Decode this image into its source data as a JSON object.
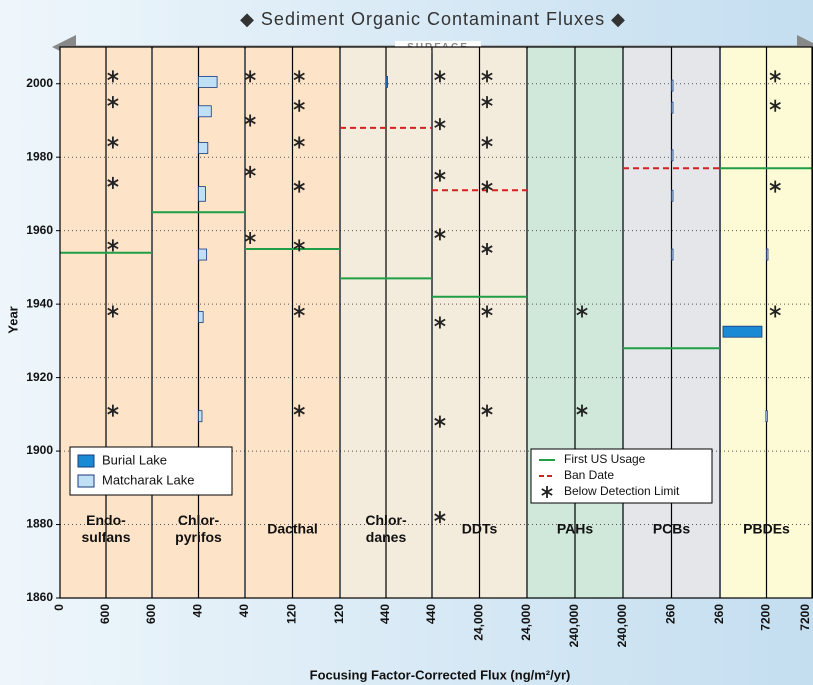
{
  "chart_data": {
    "type": "panel_flux",
    "title": "◆ Sediment Organic Contaminant Fluxes ◆",
    "top_label": "SURFACE",
    "y_label": "Year",
    "x_label": "Focusing Factor-Corrected Flux (ng/m²/yr)",
    "ylim": [
      1860,
      2010
    ],
    "yticks": [
      1860,
      1880,
      1900,
      1920,
      1940,
      1960,
      1980,
      2000
    ],
    "grid": true,
    "x_tick_labels": [
      "0",
      "600",
      "600",
      "40",
      "40",
      "120",
      "120",
      "440",
      "440",
      "24,000",
      "24,000",
      "240,000",
      "240,000",
      "260",
      "260",
      "7200",
      "7200"
    ],
    "lakes": [
      {
        "name": "Burial Lake",
        "color": "#1a8ad4"
      },
      {
        "name": "Matcharak Lake",
        "color": "#bfe0f5"
      }
    ],
    "markers": [
      {
        "name": "First US Usage",
        "color": "#1f9e45"
      },
      {
        "name": "Ban Date",
        "color": "#d42020"
      },
      {
        "name": "Below Detection Limit",
        "color": "#222222"
      }
    ],
    "panels": [
      {
        "label_lines": [
          "Endo-",
          "sulfans"
        ],
        "color": "#fde3c8",
        "xlim": [
          0,
          1200
        ],
        "first_use": 1954,
        "bdl": [
          {
            "x": 690,
            "years": [
              2002,
              1995,
              1984,
              1973,
              1956,
              1938,
              1911
            ]
          }
        ],
        "boxes": []
      },
      {
        "label_lines": [
          "Chlor-",
          "pyrifos"
        ],
        "color": "#fde3c8",
        "xlim": [
          0,
          80
        ],
        "first_use": 1965,
        "bdl": [],
        "boxes": [
          {
            "lake": 1,
            "x": [
              40,
              56
            ],
            "y": [
              1999,
              2002
            ]
          },
          {
            "lake": 1,
            "x": [
              40,
              51
            ],
            "y": [
              1991,
              1994
            ]
          },
          {
            "lake": 1,
            "x": [
              40,
              48
            ],
            "y": [
              1981,
              1984
            ]
          },
          {
            "lake": 1,
            "x": [
              40,
              46
            ],
            "y": [
              1968,
              1972
            ]
          },
          {
            "lake": 1,
            "x": [
              40,
              47
            ],
            "y": [
              1952,
              1955
            ]
          },
          {
            "lake": 1,
            "x": [
              40,
              44
            ],
            "y": [
              1935,
              1938
            ]
          },
          {
            "lake": 1,
            "x": [
              40,
              43
            ],
            "y": [
              1908,
              1911
            ]
          }
        ]
      },
      {
        "label_lines": [
          "Dacthal"
        ],
        "color": "#fde3c8",
        "xlim": [
          0,
          240
        ],
        "first_use": 1955,
        "bdl": [
          {
            "x": 13,
            "years": [
              2002,
              1990,
              1976,
              1958
            ]
          },
          {
            "x": 137,
            "years": [
              2002,
              1994,
              1984,
              1972,
              1956,
              1938,
              1911
            ]
          }
        ],
        "boxes": []
      },
      {
        "label_lines": [
          "Chlor-",
          "danes"
        ],
        "color": "#f3ebdc",
        "xlim": [
          0,
          880
        ],
        "first_use": 1947,
        "ban": 1988,
        "bdl": [],
        "boxes": [
          {
            "lake": 0,
            "x": [
              440,
              446
            ],
            "y": [
              1999,
              2002
            ]
          }
        ]
      },
      {
        "label_lines": [
          "DDTs"
        ],
        "color": "#f3ebdc",
        "xlim": [
          0,
          48000
        ],
        "first_use": 1942,
        "ban": 1971,
        "bdl": [
          {
            "x": 4000,
            "years": [
              2002,
              1989,
              1975,
              1959,
              1935,
              1908,
              1882
            ]
          },
          {
            "x": 27800,
            "years": [
              2002,
              1995,
              1984,
              1972,
              1955,
              1938,
              1911
            ]
          }
        ],
        "boxes": []
      },
      {
        "label_lines": [
          "PAHs"
        ],
        "color": "#cfe8da",
        "xlim": [
          0,
          480000
        ],
        "bdl": [
          {
            "x": 275000,
            "years": [
              1938,
              1911
            ]
          }
        ],
        "boxes": []
      },
      {
        "label_lines": [
          "PCBs"
        ],
        "color": "#e4e6ea",
        "xlim": [
          0,
          520
        ],
        "first_use": 1928,
        "ban": 1977,
        "bdl": [],
        "boxes": [
          {
            "lake": 1,
            "x": [
              260,
              262
            ],
            "y": [
              1998,
              2001
            ]
          },
          {
            "lake": 1,
            "x": [
              260,
              262
            ],
            "y": [
              1992,
              1995
            ]
          },
          {
            "lake": 1,
            "x": [
              260,
              262
            ],
            "y": [
              1979,
              1982
            ]
          },
          {
            "lake": 1,
            "x": [
              260,
              262
            ],
            "y": [
              1968,
              1971
            ]
          },
          {
            "lake": 1,
            "x": [
              260,
              262
            ],
            "y": [
              1952,
              1955
            ]
          }
        ]
      },
      {
        "label_lines": [
          "PBDEs"
        ],
        "color": "#fdfbd5",
        "xlim": [
          0,
          14400
        ],
        "first_use": 1977,
        "bdl": [
          {
            "x": 8550,
            "years": [
              2002,
              1994,
              1972,
              1938
            ]
          }
        ],
        "boxes": [
          {
            "lake": 0,
            "x": [
              460,
              6500
            ],
            "y": [
              1931,
              1934
            ]
          },
          {
            "lake": 1,
            "x": [
              7200,
              7300
            ],
            "y": [
              1952,
              1955
            ]
          },
          {
            "lake": 1,
            "x": [
              7100,
              7200
            ],
            "y": [
              1908,
              1911
            ]
          }
        ]
      }
    ]
  }
}
